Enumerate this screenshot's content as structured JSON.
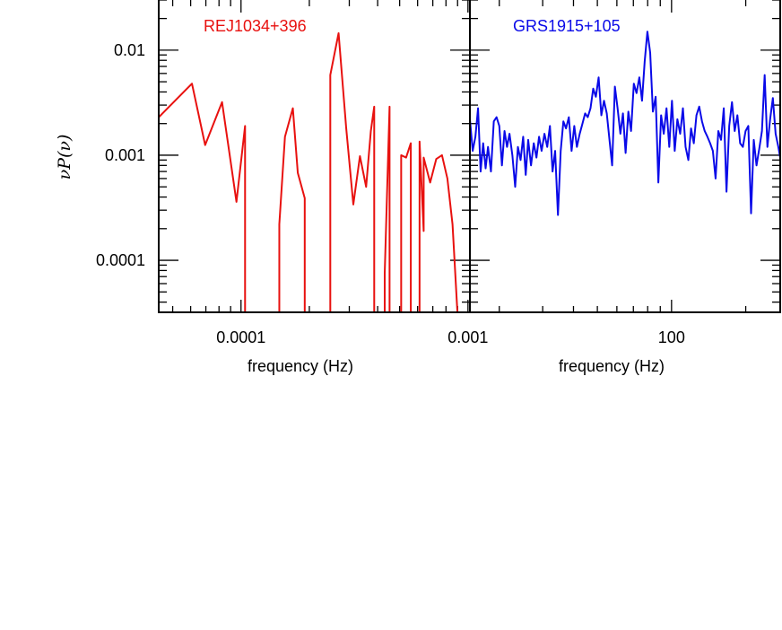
{
  "chart_data": [
    {
      "type": "line",
      "title": "REJ1034+396",
      "title_color": "#e8110f",
      "xlabel": "frequency (Hz)",
      "ylabel": "νP(ν)",
      "xscale": "log",
      "yscale": "log",
      "xlim": [
        4.34e-05,
        0.00102
      ],
      "ylim": [
        3.2e-05,
        0.03
      ],
      "xticks": [
        {
          "value": 0.0001,
          "label": "0.0001"
        },
        {
          "value": 0.001,
          "label": "0.001"
        }
      ],
      "yticks": [
        {
          "value": 0.0001,
          "label": "0.0001"
        },
        {
          "value": 0.001,
          "label": "0.001"
        },
        {
          "value": 0.01,
          "label": "0.01"
        }
      ],
      "series": [
        {
          "color": "#e8110f",
          "x": [
            4.34e-05,
            6.08e-05,
            6.95e-05,
            8.25e-05,
            9.55e-05,
            0.0001042,
            0.0001042,
            null,
            0.0001475,
            0.0001475,
            0.0001562,
            0.0001692,
            0.0001779,
            0.0001909,
            0.0001909,
            null,
            0.0002474,
            0.0002474,
            0.0002691,
            0.0002908,
            0.0003125,
            0.0003342,
            0.0003559,
            0.0003733,
            0.0003863,
            0.0003863,
            null,
            0.0004297,
            0.0004297,
            0.0004514,
            0.0004514,
            null,
            0.0005078,
            0.0005078,
            0.0005338,
            0.0005599,
            0.0005599,
            null,
            0.000612,
            0.000612,
            0.000638,
            0.000638,
            0.0006814,
            0.0007248,
            0.0007682,
            0.0008116,
            0.000855,
            0.0008984
          ],
          "y": [
            0.0023,
            0.0048,
            0.00125,
            0.0032,
            0.00036,
            0.0019,
            3.2e-05,
            null,
            3.2e-05,
            0.00022,
            0.0015,
            0.0028,
            0.00068,
            0.00039,
            3.2e-05,
            null,
            3.2e-05,
            0.0058,
            0.0145,
            0.0018,
            0.00034,
            0.00098,
            0.0005,
            0.0017,
            0.0029,
            3.2e-05,
            null,
            3.2e-05,
            7.5e-05,
            0.0029,
            3.2e-05,
            null,
            3.2e-05,
            0.001,
            0.00095,
            0.0013,
            3.2e-05,
            null,
            3.2e-05,
            0.00135,
            0.00019,
            0.00095,
            0.00055,
            0.00092,
            0.001,
            0.0006,
            0.00022,
            3.2e-05
          ]
        }
      ]
    },
    {
      "type": "line",
      "title": "GRS1915+105",
      "title_color": "#0a0ae8",
      "xlabel": "frequency (Hz)",
      "xscale": "log",
      "yscale": "log",
      "xlim": [
        15.2,
        276
      ],
      "ylim": [
        3.2e-05,
        0.03
      ],
      "xticks": [
        {
          "value": 100,
          "label": "100"
        }
      ],
      "yticks": [],
      "series": [
        {
          "color": "#0a0ae8",
          "x": [
            15.2,
            15.6,
            16,
            16.4,
            16.8,
            17.2,
            17.6,
            18,
            18.5,
            19,
            19.5,
            20,
            20.5,
            21,
            21.5,
            22,
            22.6,
            23.2,
            23.8,
            24.4,
            25,
            25.6,
            26.2,
            26.9,
            27.6,
            28.3,
            29,
            29.7,
            30.5,
            31.3,
            32.1,
            32.9,
            33.7,
            34.6,
            35.5,
            36.4,
            37.3,
            38.3,
            39.3,
            40.3,
            41.3,
            42.4,
            43.5,
            44.6,
            45.7,
            46.9,
            48.1,
            49.3,
            50.6,
            51.9,
            53.2,
            54.6,
            56,
            57.4,
            58.9,
            60.4,
            62,
            63.5,
            65.1,
            66.8,
            68.5,
            70.3,
            72.1,
            74,
            75.9,
            77.8,
            79.8,
            81.9,
            84,
            86.2,
            88.4,
            90.7,
            93,
            95.4,
            97.9,
            100.4,
            103,
            105.6,
            108.4,
            111.2,
            114,
            117,
            120,
            123.1,
            126.2,
            129.5,
            132.9,
            136.3,
            139.8,
            143.4,
            147.1,
            150.9,
            154.8,
            158.8,
            162.9,
            167.1,
            171.4,
            175.9,
            180.4,
            185,
            189.8,
            194.7,
            199.7,
            204.9,
            210.2,
            215.6,
            221.2,
            226.9,
            232.7,
            238.7,
            244.9,
            251.2,
            257.7,
            264.4,
            271.2,
            276
          ],
          "y": [
            0.0022,
            0.0011,
            0.0015,
            0.0028,
            0.0007,
            0.0013,
            0.00075,
            0.0012,
            0.0007,
            0.0021,
            0.0023,
            0.0019,
            0.0008,
            0.0017,
            0.0012,
            0.0016,
            0.001,
            0.0005,
            0.0012,
            0.0009,
            0.0015,
            0.00065,
            0.0014,
            0.0008,
            0.0013,
            0.00095,
            0.0015,
            0.0011,
            0.0016,
            0.0012,
            0.0019,
            0.0007,
            0.0011,
            0.00027,
            0.0011,
            0.0021,
            0.0018,
            0.0023,
            0.0011,
            0.0019,
            0.0012,
            0.0016,
            0.002,
            0.0025,
            0.0023,
            0.0028,
            0.0043,
            0.0036,
            0.0055,
            0.0024,
            0.0033,
            0.0025,
            0.0014,
            0.0008,
            0.0045,
            0.0028,
            0.0016,
            0.0025,
            0.00105,
            0.0026,
            0.0017,
            0.0048,
            0.0039,
            0.0055,
            0.0033,
            0.0078,
            0.015,
            0.0095,
            0.0026,
            0.0036,
            0.00055,
            0.0024,
            0.0016,
            0.0028,
            0.0012,
            0.0033,
            0.0011,
            0.0022,
            0.0016,
            0.0028,
            0.0012,
            0.0009,
            0.0018,
            0.0013,
            0.0024,
            0.0029,
            0.0021,
            0.0017,
            0.0015,
            0.0013,
            0.0011,
            0.0006,
            0.0017,
            0.0014,
            0.0028,
            0.00045,
            0.0019,
            0.0032,
            0.0017,
            0.0024,
            0.0013,
            0.0012,
            0.0017,
            0.0019,
            0.00028,
            0.0014,
            0.0008,
            0.00115,
            0.0017,
            0.0058,
            0.0012,
            0.0022,
            0.0035,
            0.0016,
            0.0012,
            0.00095
          ]
        }
      ]
    }
  ]
}
